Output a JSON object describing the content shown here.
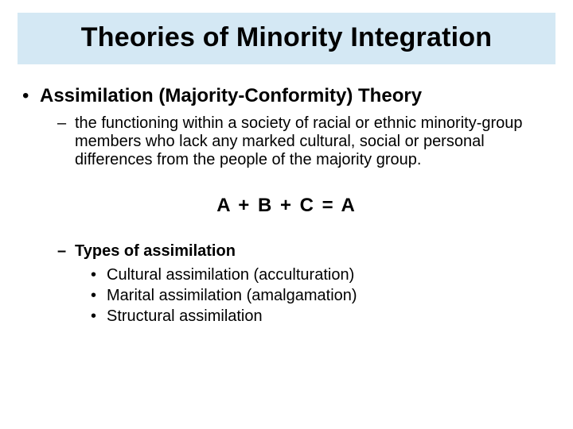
{
  "slide": {
    "title": "Theories of Minority Integration",
    "title_bg": "#d4e8f4",
    "background": "#ffffff",
    "text_color": "#000000",
    "title_fontsize": 34,
    "l1_fontsize": 24,
    "l2_fontsize": 20,
    "l3_fontsize": 20,
    "equation_fontsize": 24,
    "bullet1_heading": "Assimilation (Majority-Conformity) Theory",
    "definition": "the functioning within a society of racial or ethnic minority-group members who lack any marked cultural, social or personal differences from the people of the majority group.",
    "equation": "A + B + C = A",
    "types_heading": "Types of assimilation",
    "types": {
      "0": "Cultural assimilation (acculturation)",
      "1": "Marital assimilation (amalgamation)",
      "2": "Structural assimilation"
    }
  }
}
